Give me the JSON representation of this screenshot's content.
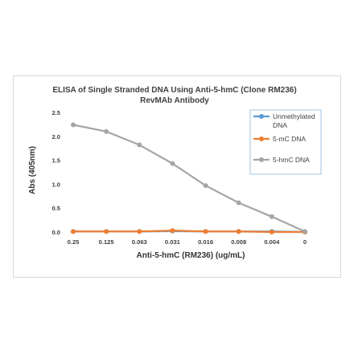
{
  "chart_data": {
    "type": "line",
    "title_line1": "ELISA of Single Stranded DNA Using Anti-5-hmC (Clone RM236)",
    "title_line2": "RevMAb Antibody",
    "xlabel": "Anti-5-hmC (RM236) (ug/mL)",
    "ylabel": "Abs (405nm)",
    "categories": [
      "0.25",
      "0.125",
      "0.063",
      "0.031",
      "0.016",
      "0.008",
      "0.004",
      "0"
    ],
    "ylim": [
      0,
      2.5
    ],
    "yticks": [
      "0.0",
      "0.5",
      "1.0",
      "1.5",
      "2.0",
      "2.5"
    ],
    "grid": false,
    "legend_position": "right",
    "series": [
      {
        "name": "Unmethylated DNA",
        "legend_lines": [
          "Unmethylated",
          "DNA"
        ],
        "color": "#5b9bd5",
        "values": [
          0.01,
          0.01,
          0.01,
          0.02,
          0.01,
          0.01,
          0.01,
          0.0
        ]
      },
      {
        "name": "5-mC DNA",
        "legend_lines": [
          "5-mC DNA"
        ],
        "color": "#ed7d31",
        "values": [
          0.01,
          0.01,
          0.01,
          0.03,
          0.01,
          0.01,
          0.0,
          0.0
        ]
      },
      {
        "name": "5-hmC DNA",
        "legend_lines": [
          "5-hmC DNA"
        ],
        "color": "#a5a5a5",
        "values": [
          2.24,
          2.1,
          1.82,
          1.43,
          0.97,
          0.61,
          0.32,
          0.01
        ]
      }
    ]
  }
}
